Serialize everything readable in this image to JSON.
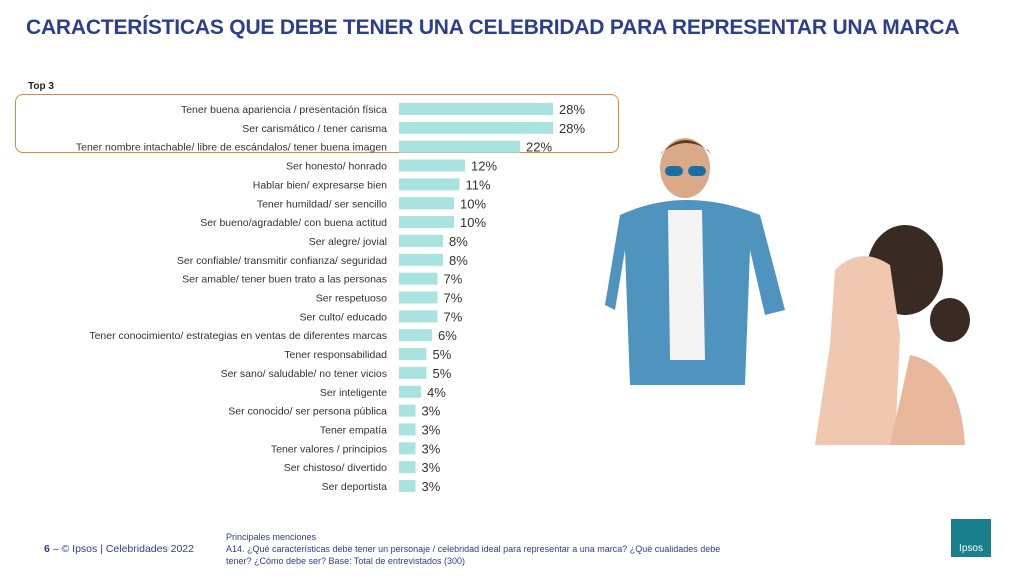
{
  "title": "CARACTERÍSTICAS QUE DEBE TENER UNA CELEBRIDAD PARA REPRESENTAR UNA MARCA",
  "chart_data": {
    "type": "bar",
    "orientation": "horizontal",
    "subtitle": "Top 3",
    "bar_color": "#a8e3e0",
    "highlight_color": "#d98a3a",
    "categories": [
      "Tener buena apariencia / presentación física",
      "Ser carismático / tener carisma",
      "Tener nombre intachable/ libre de escándalos/ tener buena imagen",
      "Ser honesto/ honrado",
      "Hablar bien/ expresarse bien",
      "Tener humildad/ ser sencillo",
      "Ser bueno/agradable/ con buena actitud",
      "Ser alegre/ jovial",
      "Ser confiable/ transmitir confianza/ seguridad",
      "Ser amable/ tener buen trato a las personas",
      "Ser respetuoso",
      "Ser culto/ educado",
      "Tener conocimiento/ estrategias en ventas de diferentes marcas",
      "Tener responsabilidad",
      "Ser sano/ saludable/ no tener vicios",
      "Ser inteligente",
      "Ser conocido/ ser persona pública",
      "Tener empatía",
      "Tener valores / principios",
      "Ser chistoso/ divertido",
      "Ser deportista"
    ],
    "values": [
      28,
      28,
      22,
      12,
      11,
      10,
      10,
      8,
      8,
      7,
      7,
      7,
      6,
      5,
      5,
      4,
      3,
      3,
      3,
      3,
      3
    ],
    "value_suffix": "%"
  },
  "footer": {
    "page": "6",
    "source": "– © Ipsos | Celebridades 2022",
    "note_title": "Principales menciones",
    "note": "A14. ¿Qué características debe tener un personaje / celebridad ideal para representar a una marca? ¿Qué cualidades debe tener? ¿Cómo debe ser? Base: Total de entrevistados (300)",
    "logo": "Ipsos"
  }
}
